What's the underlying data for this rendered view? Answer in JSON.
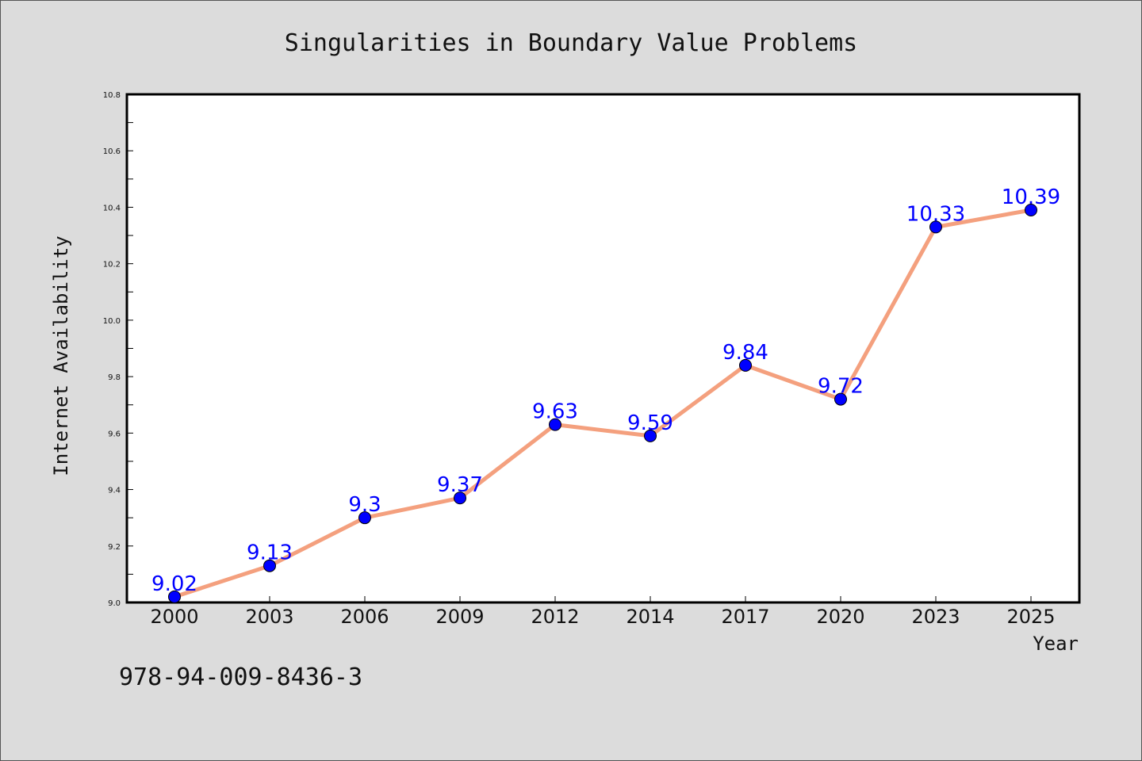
{
  "chart_data": {
    "type": "line",
    "title": "Singularities in Boundary Value Problems",
    "xlabel": "Year",
    "ylabel": "Internet Availability",
    "categories": [
      "2000",
      "2003",
      "2006",
      "2009",
      "2012",
      "2014",
      "2017",
      "2020",
      "2023",
      "2025"
    ],
    "values": [
      9.02,
      9.13,
      9.3,
      9.37,
      9.63,
      9.59,
      9.84,
      9.72,
      10.33,
      10.39
    ],
    "data_labels": [
      "9.02",
      "9.13",
      "9.3",
      "9.37",
      "9.63",
      "9.59",
      "9.84",
      "9.72",
      "10.33",
      "10.39"
    ],
    "ylim": [
      9.0,
      10.8
    ],
    "yticks": [
      "9.0",
      "9.2",
      "9.4",
      "9.6",
      "9.8",
      "10.0",
      "10.2",
      "10.4",
      "10.6",
      "10.8"
    ],
    "grid": false,
    "line_color": "#f4a07e",
    "marker_color": "#0000ff",
    "label_color": "#0000ff",
    "footer_text": "978-94-009-8436-3"
  }
}
